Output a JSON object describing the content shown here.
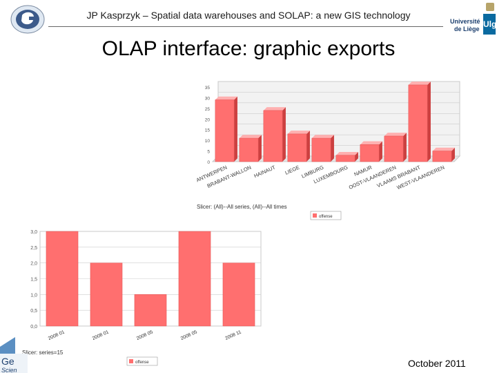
{
  "header": {
    "text": "JP Kasprzyk – Spatial data warehouses and SOLAP: a new GIS technology",
    "logo_right_line1": "Université",
    "logo_right_line2": "de Liège",
    "logo_right_mark": "Ulg"
  },
  "title": "OLAP interface: graphic exports",
  "footer": {
    "date": "October 2011"
  },
  "colors": {
    "bar": "#ff6f6f",
    "bar_top": "#ffb0b0",
    "bar_side": "#cc4040",
    "grid": "#cccccc"
  },
  "chart_data": [
    {
      "type": "bar",
      "categories": [
        "ANTWERPEN",
        "BRABANT-WALLON",
        "HAINAUT",
        "LIEGE",
        "LIMBURG",
        "LUXEMBOURG",
        "NAMUR",
        "OOST-VLAANDEREN",
        "VLAAMS BRABANT",
        "WEST-VLAANDEREN"
      ],
      "values": [
        29,
        11,
        24,
        13,
        11,
        3,
        8,
        12,
        36,
        5
      ],
      "ylim": [
        0,
        35
      ],
      "yticks": [
        "0",
        "5",
        "10",
        "15",
        "20",
        "25",
        "30",
        "35"
      ],
      "legend": "offense",
      "slicer": "Slicer: (All)--All series, (All)--All times"
    },
    {
      "type": "bar",
      "categories": [
        "2008 01",
        "2008 01",
        "2008 05",
        "2008 05",
        "2008 11"
      ],
      "values": [
        3.0,
        2.0,
        1.0,
        3.0,
        2.0
      ],
      "ylim": [
        0,
        3
      ],
      "yticks": [
        "0,0",
        "0,5",
        "1,0",
        "1,5",
        "2,0",
        "2,5",
        "3,0"
      ],
      "legend": "offense",
      "slicer": "Slicer: series=15"
    }
  ]
}
